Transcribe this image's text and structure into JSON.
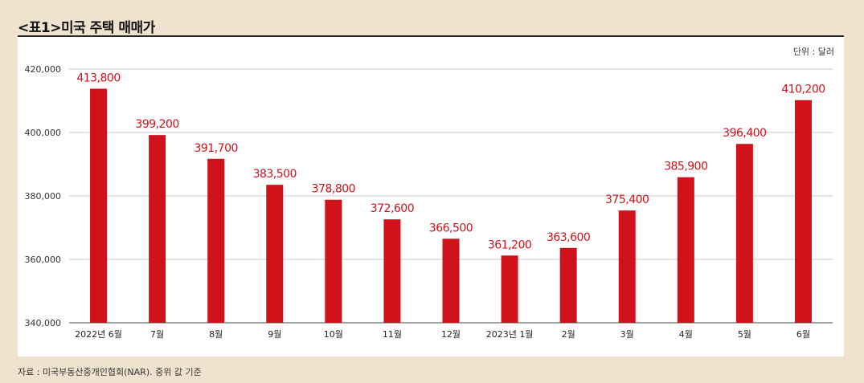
{
  "title": "<표1>미국 주택 매매가",
  "source": "자료 : 미국부동산중개인협회(NAR). 중위 값 기준",
  "colors": {
    "bar": "#d0121b",
    "label": "#d0121b",
    "grid": "#c8c8c8",
    "background": "#efe3cf"
  },
  "chart_data": {
    "type": "bar",
    "title": "<표1>미국 주택 매매가",
    "unit_note": "단위 : 달러",
    "categories": [
      "2022년 6월",
      "7월",
      "8월",
      "9월",
      "10월",
      "11월",
      "12월",
      "2023년 1월",
      "2월",
      "3월",
      "4월",
      "5월",
      "6월"
    ],
    "values": [
      413800,
      399200,
      391700,
      383500,
      378800,
      372600,
      366500,
      361200,
      363600,
      375400,
      385900,
      396400,
      410200
    ],
    "value_labels": [
      "413,800",
      "399,200",
      "391,700",
      "383,500",
      "378,800",
      "372,600",
      "366,500",
      "361,200",
      "363,600",
      "375,400",
      "385,900",
      "396,400",
      "410,200"
    ],
    "yticks": [
      340000,
      360000,
      380000,
      400000,
      420000
    ],
    "ytick_labels": [
      "340,000",
      "360,000",
      "380,000",
      "400,000",
      "420,000"
    ],
    "ylim": [
      340000,
      420000
    ],
    "grid": true,
    "xlabel": "",
    "ylabel": ""
  }
}
